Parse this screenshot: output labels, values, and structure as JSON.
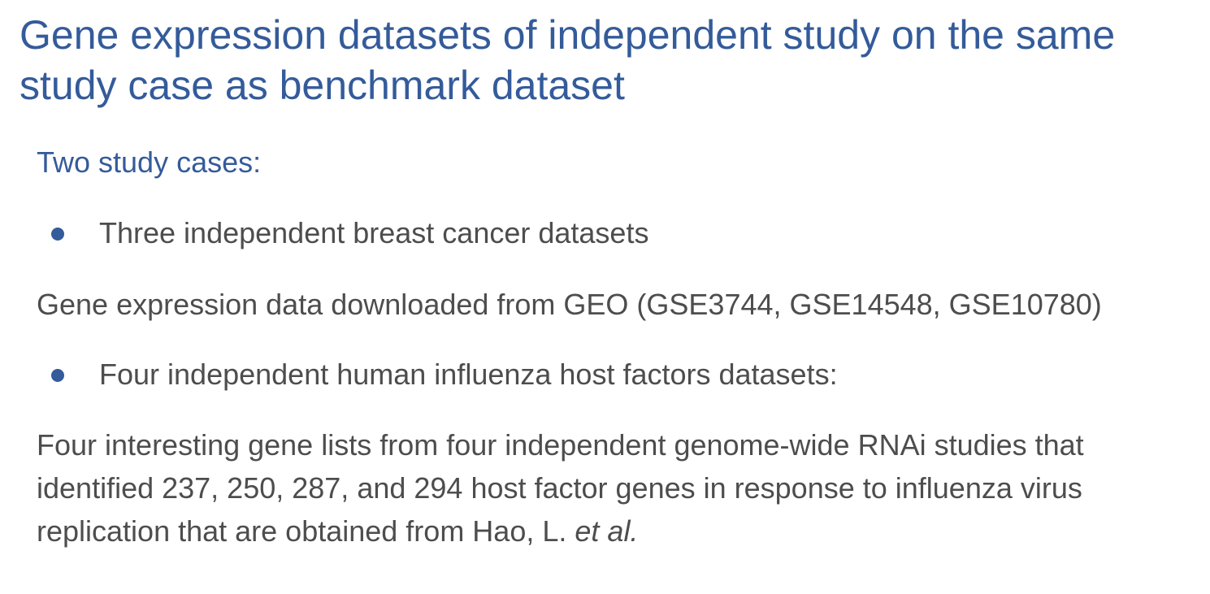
{
  "slide": {
    "title": "Gene expression datasets of independent study on the same study case as benchmark dataset",
    "subtitle": "Two study cases:",
    "bullets": [
      {
        "text": "Three independent breast cancer datasets"
      },
      {
        "text": "Four independent human influenza host factors datasets:"
      }
    ],
    "paragraph1": "Gene expression data downloaded from GEO (GSE3744, GSE14548, GSE10780)",
    "paragraph2": {
      "text": "Four interesting gene lists from four independent genome-wide RNAi studies that identified 237, 250, 287, and 294 host factor genes in response to influenza virus replication that are obtained from Hao, L. ",
      "italic_suffix": "et al."
    },
    "colors": {
      "accent": "#345b9a",
      "body_text": "#4d4d4d",
      "background": "#ffffff"
    },
    "icons": {
      "bullet": "bullet-dot-icon"
    }
  }
}
